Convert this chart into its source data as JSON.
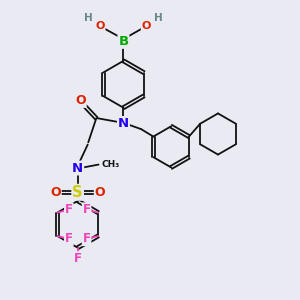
{
  "bg_color": "#eaeaf2",
  "bond_color": "#111111",
  "bond_lw": 1.3,
  "dbo": 0.055,
  "colors": {
    "B": "#00aa00",
    "O": "#dd2200",
    "N": "#2200ee",
    "S": "#cccc00",
    "F": "#ee44bb",
    "H": "#668888",
    "C": "#111111"
  },
  "xlim": [
    0,
    9.5
  ],
  "ylim": [
    0,
    10.5
  ]
}
